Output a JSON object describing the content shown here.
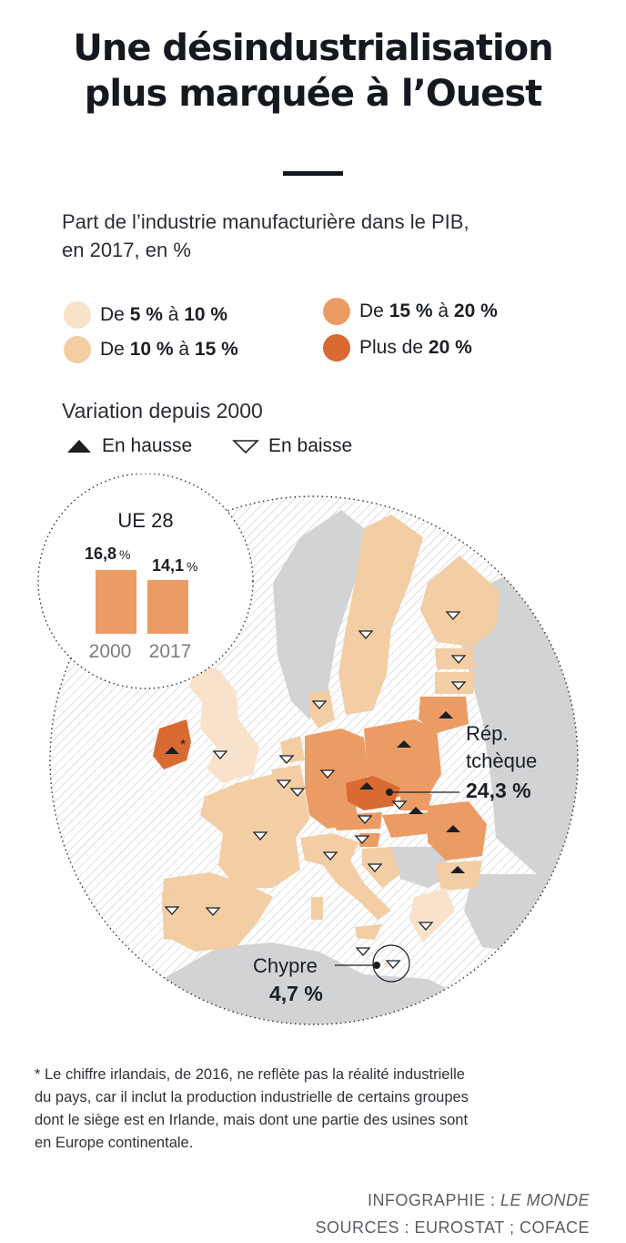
{
  "title_line1": "Une désindustrialisation",
  "title_line2": "plus marquée à l’Ouest",
  "subtitle_line1": "Part de l’industrie manufacturière dans le PIB,",
  "subtitle_line2": "en 2017, en %",
  "legend": {
    "share_classes": [
      {
        "prefix": "De ",
        "low": "5 %",
        "mid": " à ",
        "high": "10 %",
        "color": "#f8e2cc"
      },
      {
        "prefix": "De ",
        "low": "10 %",
        "mid": " à ",
        "high": "15 %",
        "color": "#f3cda3"
      },
      {
        "prefix": "De ",
        "low": "15 %",
        "mid": " à ",
        "high": "20 %",
        "color": "#eb9c64"
      },
      {
        "prefix": "Plus de ",
        "low": "20 %",
        "mid": "",
        "high": "",
        "color": "#d86a32"
      }
    ],
    "variation_title": "Variation depuis 2000",
    "up_label": "En hausse",
    "down_label": "En baisse"
  },
  "inset": {
    "title": "UE 28",
    "bars": [
      {
        "year": "2000",
        "value": "16,8",
        "unit": "%"
      },
      {
        "year": "2017",
        "value": "14,1",
        "unit": "%"
      }
    ],
    "bar_color": "#eb9c64"
  },
  "map": {
    "ireland_marker": "*",
    "callout_czech_line1": "Rép.",
    "callout_czech_line2": "tchèque",
    "callout_czech_value": "24,3 %",
    "callout_cyprus_name": "Chypre",
    "callout_cyprus_value": "4,7 %"
  },
  "footnote": [
    "* Le chiffre irlandais, de 2016, ne reflète pas la réalité industrielle",
    "du pays, car il inclut la production industrielle de certains groupes",
    "dont le siège est en Irlande, mais dont une partie des usines sont",
    "en Europe continentale."
  ],
  "credits": {
    "line1_prefix": "INFOGRAPHIE : ",
    "line1_source": "LE MONDE",
    "line2": "SOURCES : EUROSTAT ; COFACE"
  },
  "colors": {
    "class_5_10": "#f8e2cc",
    "class_10_15": "#f3cda3",
    "class_15_20": "#eb9c64",
    "class_20_plus": "#d86a32",
    "non_eu_land": "#d2d3d5",
    "sea_hatch": "#c9ccd0"
  }
}
